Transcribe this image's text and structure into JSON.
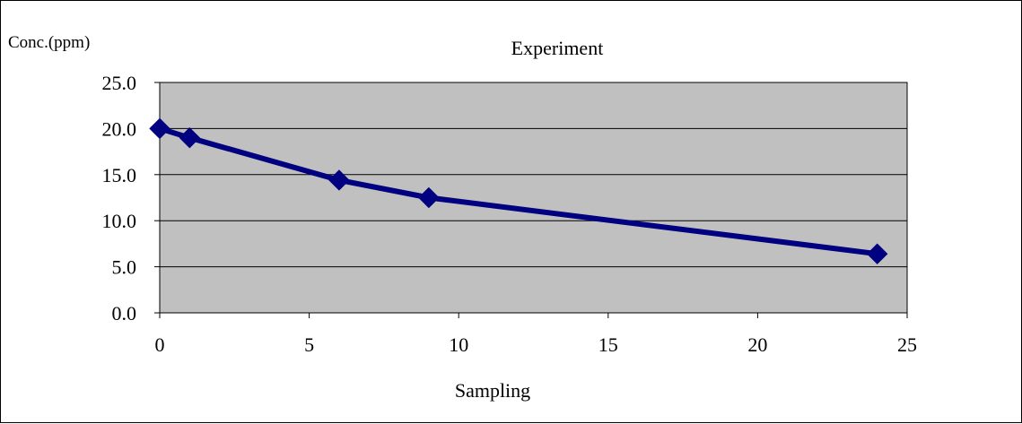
{
  "chart_data": {
    "type": "line",
    "title": "Experiment",
    "xlabel": "Sampling",
    "ylabel": "Conc.(ppm)",
    "xlim": [
      0,
      25
    ],
    "ylim": [
      0,
      25
    ],
    "x_ticks": [
      0,
      5,
      10,
      15,
      20,
      25
    ],
    "x_tick_labels": [
      "0",
      "5",
      "10",
      "15",
      "20",
      "25"
    ],
    "y_ticks": [
      0,
      5,
      10,
      15,
      20,
      25
    ],
    "y_tick_labels": [
      "0.0",
      "5.0",
      "10.0",
      "15.0",
      "20.0",
      "25.0"
    ],
    "grid": "horizontal",
    "plot_background": "#c0c0c0",
    "series": [
      {
        "color": "#000080",
        "marker": "diamond",
        "x": [
          0,
          1,
          6,
          9,
          24
        ],
        "y": [
          20.0,
          19.0,
          14.4,
          12.5,
          6.4
        ]
      }
    ]
  }
}
